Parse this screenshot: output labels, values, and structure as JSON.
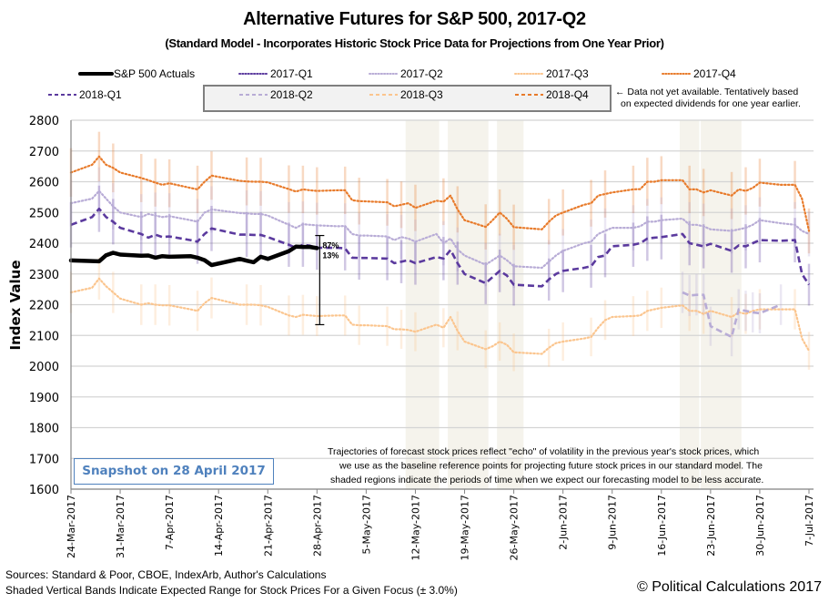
{
  "chart_data": {
    "type": "line",
    "title": "Alternative Futures for S&P 500, 2017-Q2",
    "subtitle": "(Standard Model - Incorporates Historic Stock Price Data for Projections from One Year Prior)",
    "xlabel": "",
    "ylabel": "Index Value",
    "ylim": [
      1600,
      2800
    ],
    "yticks": [
      1600,
      1700,
      1800,
      1900,
      2000,
      2100,
      2200,
      2300,
      2400,
      2500,
      2600,
      2700,
      2800
    ],
    "grid": "horizontal",
    "x_start": "2017-03-24",
    "x_end": "2017-07-07",
    "xtick_labels": [
      "24-Mar-2017",
      "31-Mar-2017",
      "7-Apr-2017",
      "14-Apr-2017",
      "21-Apr-2017",
      "28-Apr-2017",
      "5-May-2017",
      "12-May-2017",
      "19-May-2017",
      "26-May-2017",
      "2-Jun-2017",
      "9-Jun-2017",
      "16-Jun-2017",
      "23-Jun-2017",
      "30-Jun-2017",
      "7-Jul-2017"
    ],
    "error_band_pct": 3.0,
    "legend": {
      "placement": "top",
      "entries": [
        {
          "name": "S&P 500 Actuals",
          "style": "solid-thick",
          "color": "#000000"
        },
        {
          "name": "2017-Q1",
          "style": "dotted",
          "color": "#5b3a9e"
        },
        {
          "name": "2017-Q2",
          "style": "dotted",
          "color": "#b8acd6"
        },
        {
          "name": "2017-Q3",
          "style": "dotted",
          "color": "#fbc58e"
        },
        {
          "name": "2017-Q4",
          "style": "dotted",
          "color": "#e87b2b"
        },
        {
          "name": "2018-Q1",
          "style": "dashed",
          "color": "#5b3a9e"
        },
        {
          "name": "2018-Q2",
          "style": "dashed",
          "color": "#b8acd6",
          "boxed": true
        },
        {
          "name": "2018-Q3",
          "style": "dashed",
          "color": "#fbc58e",
          "boxed": true
        },
        {
          "name": "2018-Q4",
          "style": "dashed",
          "color": "#e87b2b",
          "boxed": true
        }
      ],
      "boxed_note": "← Data not yet available. Tentatively based on expected dividends for one year earlier."
    },
    "dates": [
      "2017-03-24",
      "2017-03-27",
      "2017-03-28",
      "2017-03-29",
      "2017-03-30",
      "2017-03-31",
      "2017-04-03",
      "2017-04-04",
      "2017-04-05",
      "2017-04-06",
      "2017-04-07",
      "2017-04-10",
      "2017-04-11",
      "2017-04-12",
      "2017-04-13",
      "2017-04-17",
      "2017-04-18",
      "2017-04-19",
      "2017-04-20",
      "2017-04-21",
      "2017-04-24",
      "2017-04-25",
      "2017-04-26",
      "2017-04-27",
      "2017-04-28",
      "2017-05-01",
      "2017-05-02",
      "2017-05-03",
      "2017-05-04",
      "2017-05-05",
      "2017-05-08",
      "2017-05-09",
      "2017-05-10",
      "2017-05-11",
      "2017-05-12",
      "2017-05-15",
      "2017-05-16",
      "2017-05-17",
      "2017-05-18",
      "2017-05-19",
      "2017-05-22",
      "2017-05-23",
      "2017-05-24",
      "2017-05-25",
      "2017-05-26",
      "2017-05-30",
      "2017-05-31",
      "2017-06-01",
      "2017-06-02",
      "2017-06-05",
      "2017-06-06",
      "2017-06-07",
      "2017-06-08",
      "2017-06-09",
      "2017-06-12",
      "2017-06-13",
      "2017-06-14",
      "2017-06-15",
      "2017-06-16",
      "2017-06-19",
      "2017-06-20",
      "2017-06-21",
      "2017-06-22",
      "2017-06-23",
      "2017-06-26",
      "2017-06-27",
      "2017-06-28",
      "2017-06-29",
      "2017-06-30",
      "2017-07-03",
      "2017-07-05",
      "2017-07-06",
      "2017-07-07"
    ],
    "series": [
      {
        "name": "2017-Q4",
        "style": "dotted",
        "color": "#e87b2b",
        "values": [
          2630,
          2655,
          2682,
          2655,
          2645,
          2630,
          2612,
          2605,
          2597,
          2590,
          2595,
          2580,
          2575,
          2600,
          2620,
          2603,
          2601,
          2600,
          2600,
          2598,
          2576,
          2568,
          2575,
          2572,
          2570,
          2572,
          2572,
          2540,
          2537,
          2536,
          2533,
          2520,
          2525,
          2530,
          2515,
          2538,
          2535,
          2555,
          2510,
          2475,
          2453,
          2475,
          2500,
          2480,
          2452,
          2445,
          2470,
          2490,
          2500,
          2525,
          2530,
          2555,
          2560,
          2565,
          2575,
          2576,
          2600,
          2600,
          2605,
          2605,
          2575,
          2575,
          2565,
          2572,
          2555,
          2575,
          2570,
          2580,
          2597,
          2590,
          2590,
          2545,
          2440
        ],
        "values_tail": [
          2545,
          2530,
          2530,
          2520,
          2530,
          2570
        ]
      },
      {
        "name": "2017-Q2",
        "style": "dotted",
        "color": "#b8acd6",
        "values": [
          2530,
          2545,
          2570,
          2545,
          2520,
          2500,
          2485,
          2495,
          2490,
          2485,
          2488,
          2475,
          2470,
          2500,
          2510,
          2498,
          2497,
          2495,
          2495,
          2490,
          2460,
          2450,
          2462,
          2460,
          2458,
          2455,
          2456,
          2430,
          2425,
          2425,
          2422,
          2410,
          2420,
          2415,
          2405,
          2430,
          2400,
          2415,
          2380,
          2360,
          2330,
          2345,
          2360,
          2345,
          2325,
          2320,
          2340,
          2360,
          2375,
          2400,
          2405,
          2430,
          2440,
          2450,
          2450,
          2455,
          2470,
          2470,
          2475,
          2480,
          2460,
          2460,
          2455,
          2445,
          2440,
          2445,
          2450,
          2460,
          2475,
          2465,
          2460,
          2440,
          2430
        ]
      },
      {
        "name": "2018-Q1",
        "style": "dashed",
        "color": "#5b3a9e",
        "values": [
          2460,
          2485,
          2512,
          2485,
          2470,
          2450,
          2430,
          2418,
          2428,
          2420,
          2422,
          2410,
          2405,
          2430,
          2448,
          2428,
          2428,
          2427,
          2427,
          2420,
          2395,
          2385,
          2395,
          2392,
          2385,
          2385,
          2383,
          2353,
          2352,
          2352,
          2350,
          2335,
          2340,
          2345,
          2335,
          2355,
          2350,
          2378,
          2335,
          2300,
          2270,
          2290,
          2310,
          2295,
          2265,
          2260,
          2282,
          2300,
          2310,
          2320,
          2325,
          2355,
          2360,
          2390,
          2395,
          2400,
          2415,
          2418,
          2420,
          2430,
          2400,
          2395,
          2390,
          2398,
          2375,
          2393,
          2390,
          2400,
          2410,
          2408,
          2410,
          2300,
          2265
        ],
        "values_tail": [
          2360,
          2355,
          2352,
          2350,
          2350,
          2378
        ]
      },
      {
        "name": "2017-Q3",
        "style": "dotted",
        "color": "#fbc58e",
        "values": [
          2240,
          2255,
          2285,
          2260,
          2240,
          2220,
          2200,
          2205,
          2200,
          2198,
          2198,
          2185,
          2180,
          2205,
          2222,
          2200,
          2200,
          2200,
          2198,
          2193,
          2165,
          2160,
          2167,
          2165,
          2163,
          2165,
          2165,
          2135,
          2133,
          2133,
          2130,
          2120,
          2120,
          2118,
          2112,
          2135,
          2125,
          2160,
          2115,
          2080,
          2055,
          2065,
          2080,
          2070,
          2045,
          2040,
          2060,
          2075,
          2080,
          2090,
          2095,
          2125,
          2150,
          2160,
          2163,
          2165,
          2180,
          2185,
          2190,
          2198,
          2180,
          2180,
          2170,
          2180,
          2160,
          2175,
          2170,
          2180,
          2185,
          2185,
          2185,
          2090,
          2050
        ],
        "values_tail": [
          2125,
          2120,
          2118,
          2115,
          2115,
          2150
        ]
      },
      {
        "name": "2018-Q2",
        "style": "dashed",
        "color": "#b8acd6",
        "start_date": "2017-06-19",
        "values": [
          2240,
          2230,
          2232,
          2232,
          2130,
          2095,
          2185,
          2180,
          2175,
          2172,
          2200
        ]
      },
      {
        "name": "S&P 500 Actuals",
        "style": "solid-thick",
        "color": "#000000",
        "values": [
          2344,
          2342,
          2341,
          2361,
          2369,
          2363,
          2359,
          2360,
          2353,
          2358,
          2356,
          2358,
          2353,
          2345,
          2329,
          2349,
          2343,
          2338,
          2356,
          2349,
          2374,
          2389,
          2388,
          2388,
          2384
        ]
      }
    ],
    "annotations": [
      {
        "date": "2017-04-28",
        "upper": 2425,
        "lower": 2135,
        "upper_pct": "87%",
        "lower_pct": "13%"
      }
    ],
    "shaded_bands": [
      [
        "2017-05-11",
        "2017-05-15"
      ],
      [
        "2017-05-17",
        "2017-05-22"
      ],
      [
        "2017-05-24",
        "2017-05-27"
      ],
      [
        "2017-06-19",
        "2017-06-21"
      ],
      [
        "2017-06-22",
        "2017-06-27"
      ]
    ],
    "note": "Trajectories of forecast stock prices reflect \"echo\" of volatility in  the previous year's stock prices, which we use as the baseline reference points for projecting future stock prices in our standard model.   The shaded regions indicate the periods of time when we expect our forecasting model to be less accurate.",
    "note_lines": [
      "Trajectories of forecast stock prices reflect \"echo\" of volatility in  the previous year's stock prices, which",
      "we use as the baseline reference points for projecting future stock prices in our standard model.   The",
      "shaded regions indicate the periods of time when we expect our forecasting model to be less accurate."
    ]
  },
  "snapshot_label": "Snapshot on 28 April 2017",
  "footer": {
    "sources": "Sources: Standard & Poor, CBOE, IndexArb, Author's Calculations",
    "band_note": "Shaded Vertical Bands Indicate Expected Range for Stock Prices For a Given Focus (± 3.0%)",
    "copyright": "© Political Calculations 2017"
  }
}
